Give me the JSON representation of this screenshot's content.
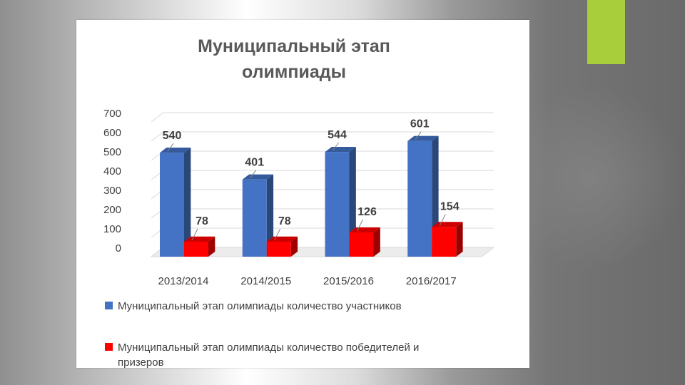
{
  "chart_data": {
    "type": "bar",
    "title": [
      "Муниципальный этап",
      "олимпиады"
    ],
    "categories": [
      "2013/2014",
      "2014/2015",
      "2015/2016",
      "2016/2017"
    ],
    "series": [
      {
        "name": [
          "Муниципальный этап олимпиады количество участников"
        ],
        "values": [
          540,
          401,
          544,
          601
        ],
        "color": "#4472c4"
      },
      {
        "name": [
          "Муниципальный этап олимпиады количество победителей и",
          "призеров"
        ],
        "values": [
          78,
          78,
          126,
          154
        ],
        "color": "#ff0000"
      }
    ],
    "ylim": [
      0,
      700
    ],
    "yticks": [
      0,
      100,
      200,
      300,
      400,
      500,
      600,
      700
    ],
    "grid": true,
    "legend": "bottom",
    "style": "3d-column"
  },
  "slide": {
    "accent_color": "#a8cf3b"
  }
}
